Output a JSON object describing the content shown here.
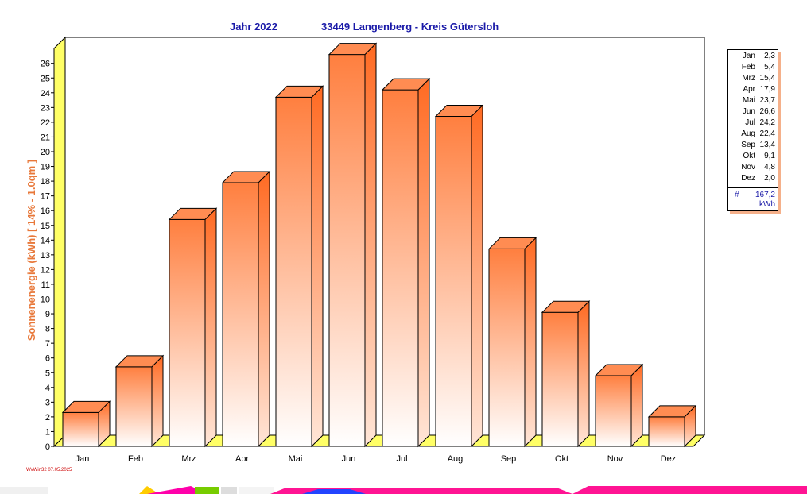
{
  "title": {
    "year": "Jahr  2022",
    "place": "33449 Langenberg - Kreis Gütersloh"
  },
  "footer_note": "WvWin32  07.05.2025",
  "colors": {
    "bar_top": "#ff7f3f",
    "bar_bottom": "#ffffff",
    "axis_label": "#e8783a",
    "title": "#1a1aa8",
    "wall_yellow": "#ffff66",
    "legend_shadow": "#f5b08a"
  },
  "legend": {
    "items": [
      {
        "month": "Jan",
        "value": "2,3"
      },
      {
        "month": "Feb",
        "value": "5,4"
      },
      {
        "month": "Mrz",
        "value": "15,4"
      },
      {
        "month": "Apr",
        "value": "17,9"
      },
      {
        "month": "Mai",
        "value": "23,7"
      },
      {
        "month": "Jun",
        "value": "26,6"
      },
      {
        "month": "Jul",
        "value": "24,2"
      },
      {
        "month": "Aug",
        "value": "22,4"
      },
      {
        "month": "Sep",
        "value": "13,4"
      },
      {
        "month": "Okt",
        "value": "9,1"
      },
      {
        "month": "Nov",
        "value": "4,8"
      },
      {
        "month": "Dez",
        "value": "2,0"
      }
    ],
    "total_label": "#",
    "total_value": "167,2",
    "unit": "kWh"
  },
  "chart_data": {
    "type": "bar",
    "categories": [
      "Jan",
      "Feb",
      "Mrz",
      "Apr",
      "Mai",
      "Jun",
      "Jul",
      "Aug",
      "Sep",
      "Okt",
      "Nov",
      "Dez"
    ],
    "values": [
      2.3,
      5.4,
      15.4,
      17.9,
      23.7,
      26.6,
      24.2,
      22.4,
      13.4,
      9.1,
      4.8,
      2.0
    ],
    "title": "Jahr  2022    33449 Langenberg - Kreis Gütersloh",
    "xlabel": "",
    "ylabel": "Sonnenenergie  (kWh)    [ 14% - 1.0qm ]",
    "ylim": [
      0,
      26
    ],
    "yticks": [
      0,
      1,
      2,
      3,
      4,
      5,
      6,
      7,
      8,
      9,
      10,
      11,
      12,
      13,
      14,
      15,
      16,
      17,
      18,
      19,
      20,
      21,
      22,
      23,
      24,
      25,
      26
    ],
    "grid": true,
    "legend": "right"
  }
}
